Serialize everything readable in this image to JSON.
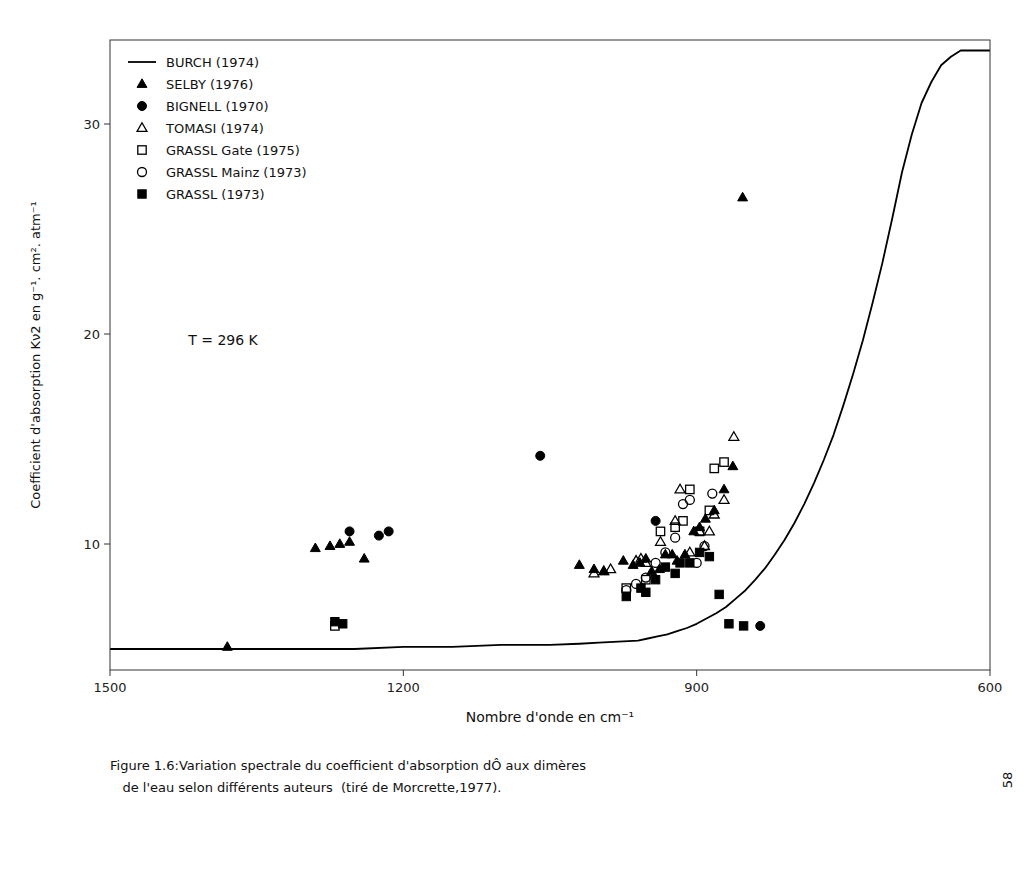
{
  "chart_data": {
    "type": "scatter",
    "title": "",
    "x_label": "Nombre d'onde en cm⁻¹",
    "y_label": "Coefficient d'absorption Kν2 en g⁻¹. cm². atm⁻¹",
    "xlim": [
      1500,
      600
    ],
    "ylim": [
      4,
      34
    ],
    "xticks": [
      1500,
      1200,
      900,
      600
    ],
    "yticks": [
      10,
      20,
      30
    ],
    "grid": false,
    "legend": "upper left",
    "annotations": [
      {
        "text": "T = 296 K",
        "x": 1420,
        "y": 19.5
      }
    ],
    "caption": [
      "Figure 1.6:Variation spectrale du coefficient d'absorption dÔ aux dimères",
      "   de l'eau selon différents auteurs  (tiré de Morcrette,1977)."
    ],
    "page_number": "58",
    "series": [
      {
        "name": "BURCH (1974)",
        "type": "line",
        "color": "#000000",
        "x": [
          1500,
          1450,
          1400,
          1350,
          1300,
          1250,
          1200,
          1150,
          1100,
          1050,
          1020,
          1000,
          980,
          960,
          950,
          940,
          930,
          920,
          910,
          900,
          890,
          880,
          870,
          860,
          850,
          840,
          830,
          820,
          810,
          800,
          790,
          780,
          770,
          760,
          750,
          740,
          730,
          720,
          710,
          700,
          690,
          680,
          670,
          660,
          650,
          640,
          630,
          620,
          610,
          600
        ],
        "values": [
          5.0,
          5.0,
          5.0,
          5.0,
          5.0,
          5.0,
          5.1,
          5.1,
          5.2,
          5.2,
          5.25,
          5.3,
          5.35,
          5.4,
          5.5,
          5.6,
          5.7,
          5.85,
          6.0,
          6.2,
          6.45,
          6.7,
          7.0,
          7.4,
          7.8,
          8.3,
          8.85,
          9.5,
          10.2,
          11.0,
          11.9,
          12.9,
          14.0,
          15.2,
          16.6,
          18.1,
          19.7,
          21.5,
          23.4,
          25.5,
          27.7,
          29.5,
          31.0,
          32.0,
          32.8,
          33.2,
          33.5,
          33.5,
          33.5,
          33.5
        ]
      },
      {
        "name": "SELBY (1976)",
        "type": "scatter",
        "marker": "triangle",
        "color": "#000000",
        "x": [
          1380,
          1290,
          1275,
          1265,
          1255,
          1240,
          1020,
          1005,
          995,
          975,
          965,
          958,
          952,
          946,
          938,
          932,
          925,
          920,
          912,
          903,
          897,
          891,
          882,
          872,
          863,
          853
        ],
        "values": [
          5.1,
          9.8,
          9.9,
          10.0,
          10.1,
          9.3,
          9.0,
          8.8,
          8.7,
          9.2,
          9.0,
          9.1,
          9.3,
          8.7,
          8.8,
          9.5,
          9.5,
          9.2,
          9.5,
          10.6,
          10.8,
          11.2,
          11.6,
          12.6,
          13.7,
          26.5
        ]
      },
      {
        "name": "BIGNELL (1970)",
        "type": "scatter",
        "marker": "circle",
        "color": "#000000",
        "x": [
          1255,
          1225,
          1215,
          1060,
          942,
          835
        ],
        "values": [
          10.6,
          10.4,
          10.6,
          14.2,
          11.1,
          6.1
        ]
      },
      {
        "name": "TOMASI (1974)",
        "type": "scatter",
        "marker": "triangle-open",
        "color": "#000000",
        "x": [
          1005,
          995,
          988,
          962,
          957,
          952,
          937,
          922,
          917,
          907,
          897,
          892,
          887,
          882,
          872,
          862
        ],
        "values": [
          8.6,
          8.7,
          8.8,
          9.2,
          9.3,
          9.1,
          10.1,
          11.1,
          12.6,
          9.6,
          10.6,
          9.9,
          10.6,
          11.4,
          12.1,
          15.1
        ]
      },
      {
        "name": "GRASSL Gate (1975)",
        "type": "scatter",
        "marker": "square-open",
        "color": "#000000",
        "x": [
          1270,
          972,
          952,
          937,
          922,
          914,
          907,
          897,
          887,
          882,
          872
        ],
        "values": [
          6.1,
          7.9,
          8.3,
          10.6,
          10.8,
          11.1,
          12.6,
          10.6,
          11.6,
          13.6,
          13.9
        ]
      },
      {
        "name": "GRASSL Mainz (1973)",
        "type": "scatter",
        "marker": "circle-open",
        "color": "#000000",
        "x": [
          972,
          962,
          952,
          942,
          932,
          922,
          914,
          907,
          900,
          892,
          884
        ],
        "values": [
          7.8,
          8.1,
          8.4,
          9.1,
          9.6,
          10.3,
          11.9,
          12.1,
          9.1,
          9.9,
          12.4
        ]
      },
      {
        "name": "GRASSL (1973)",
        "type": "scatter",
        "marker": "square",
        "color": "#000000",
        "x": [
          1270,
          1262,
          972,
          957,
          952,
          942,
          932,
          922,
          917,
          907,
          897,
          887,
          877,
          867,
          852
        ],
        "values": [
          6.3,
          6.2,
          7.5,
          7.9,
          7.7,
          8.3,
          8.9,
          8.6,
          9.1,
          9.1,
          9.6,
          9.4,
          7.6,
          6.2,
          6.1
        ]
      }
    ]
  }
}
